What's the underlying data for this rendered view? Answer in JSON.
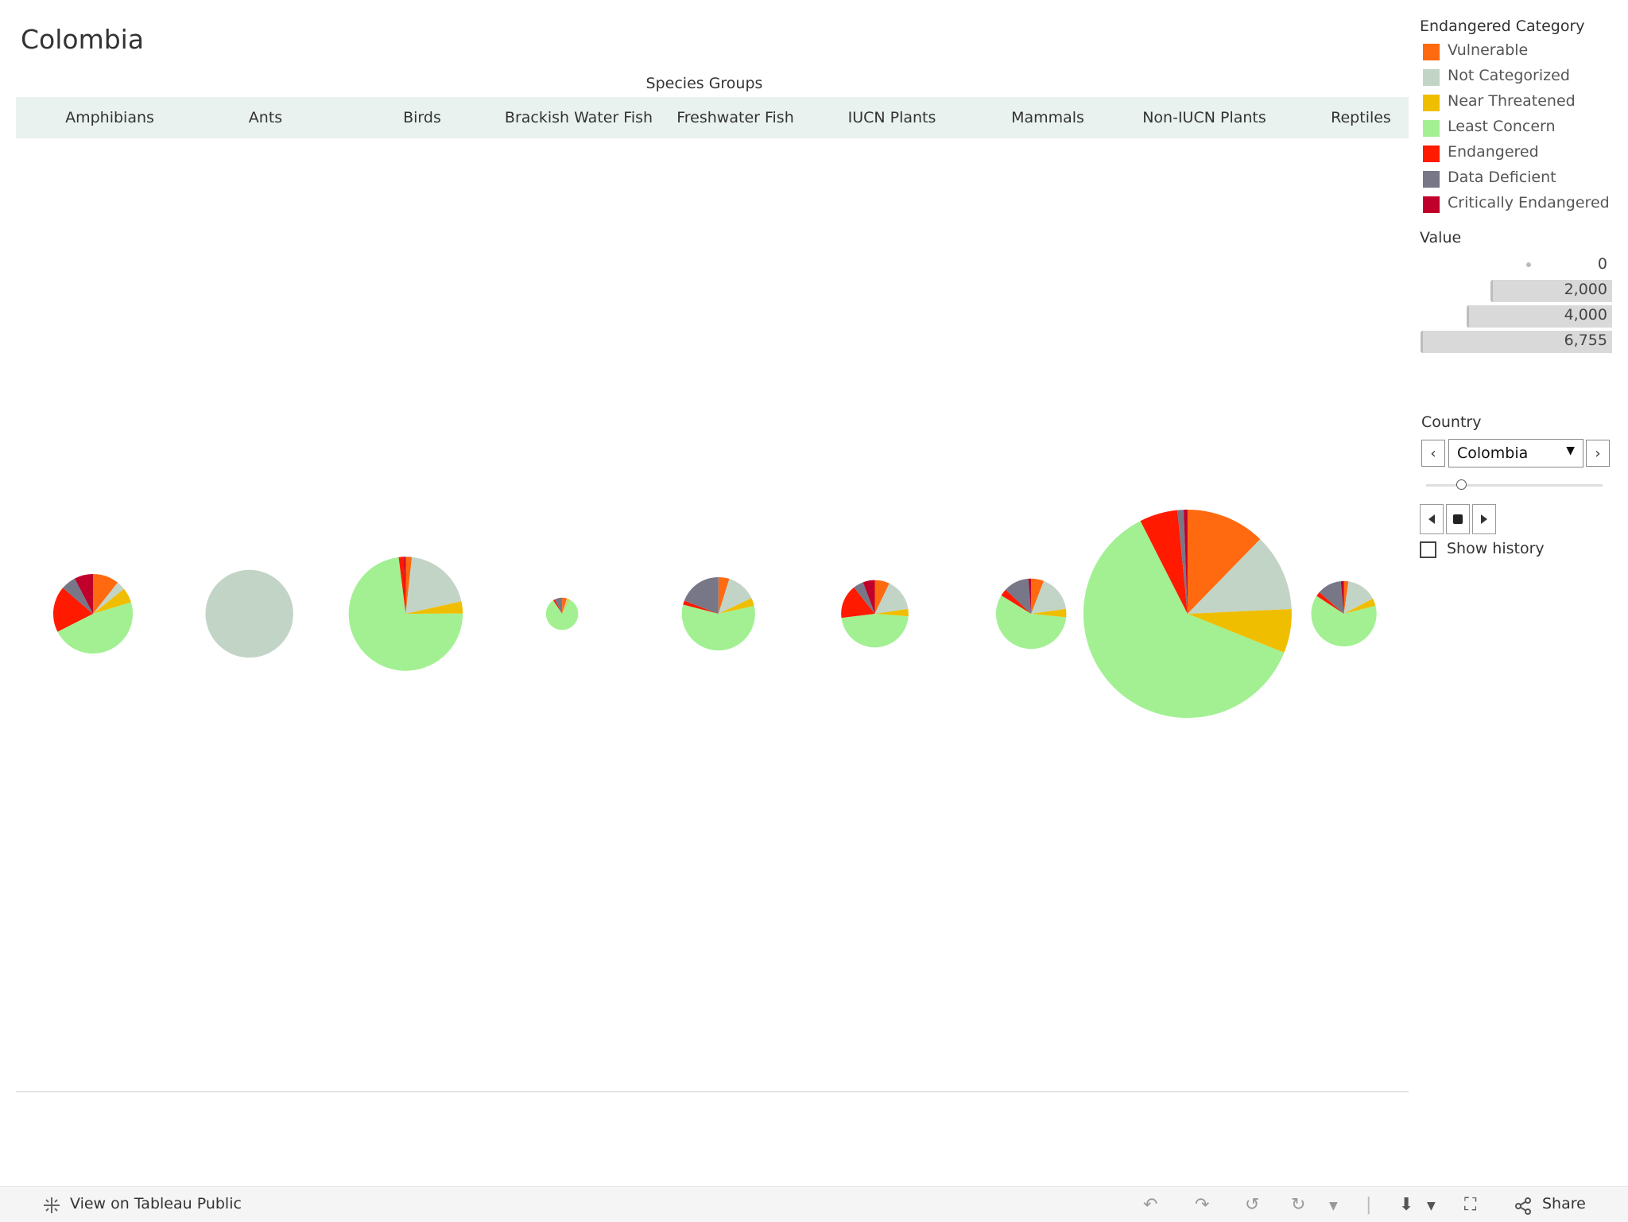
{
  "title": "Colombia",
  "chart_data": {
    "type": "pie",
    "title": "Colombia",
    "column_axis_title": "Species Groups",
    "categories": [
      "Amphibians",
      "Ants",
      "Birds",
      "Brackish Water Fish",
      "Freshwater Fish",
      "IUCN Plants",
      "Mammals",
      "Non-IUCN Plants",
      "Reptiles"
    ],
    "slice_order": [
      "Vulnerable",
      "Not Categorized",
      "Near Threatened",
      "Least Concern",
      "Endangered",
      "Data Deficient",
      "Critically Endangered"
    ],
    "colors": {
      "Vulnerable": "#ff6a10",
      "Not Categorized": "#c2d4c6",
      "Near Threatened": "#f0be00",
      "Least Concern": "#a2f092",
      "Endangered": "#ff1a00",
      "Data Deficient": "#777788",
      "Critically Endangered": "#c0002a"
    },
    "size_measure": "Value",
    "size_legend_values": [
      "0",
      "2,000",
      "4,000",
      "6,755"
    ],
    "size_max": 6755,
    "pies": [
      {
        "group": "Amphibians",
        "values": {
          "Vulnerable": 105,
          "Not Categorized": 35,
          "Near Threatened": 60,
          "Least Concern": 465,
          "Endangered": 185,
          "Data Deficient": 60,
          "Critically Endangered": 75
        }
      },
      {
        "group": "Ants",
        "values": {
          "Vulnerable": 0,
          "Not Categorized": 1200,
          "Near Threatened": 0,
          "Least Concern": 0,
          "Endangered": 0,
          "Data Deficient": 0,
          "Critically Endangered": 0
        }
      },
      {
        "group": "Birds",
        "values": {
          "Vulnerable": 35,
          "Not Categorized": 400,
          "Near Threatened": 70,
          "Least Concern": 1480,
          "Endangered": 30,
          "Data Deficient": 0,
          "Critically Endangered": 10
        }
      },
      {
        "group": "Brackish Water Fish",
        "values": {
          "Vulnerable": 8,
          "Not Categorized": 2,
          "Near Threatened": 2,
          "Least Concern": 135,
          "Endangered": 3,
          "Data Deficient": 12,
          "Critically Endangered": 0
        }
      },
      {
        "group": "Freshwater Fish",
        "values": {
          "Vulnerable": 40,
          "Not Categorized": 110,
          "Near Threatened": 30,
          "Least Concern": 480,
          "Endangered": 15,
          "Data Deficient": 160,
          "Critically Endangered": 0
        }
      },
      {
        "group": "IUCN Plants",
        "values": {
          "Vulnerable": 50,
          "Not Categorized": 110,
          "Near Threatened": 25,
          "Least Concern": 330,
          "Endangered": 115,
          "Data Deficient": 35,
          "Critically Endangered": 40
        }
      },
      {
        "group": "Mammals",
        "values": {
          "Vulnerable": 45,
          "Not Categorized": 130,
          "Near Threatened": 30,
          "Least Concern": 440,
          "Endangered": 25,
          "Data Deficient": 90,
          "Critically Endangered": 10
        }
      },
      {
        "group": "Non-IUCN Plants",
        "values": {
          "Vulnerable": 830,
          "Not Categorized": 810,
          "Near Threatened": 460,
          "Least Concern": 4150,
          "Endangered": 400,
          "Data Deficient": 65,
          "Critically Endangered": 40
        }
      },
      {
        "group": "Reptiles",
        "values": {
          "Vulnerable": 15,
          "Not Categorized": 100,
          "Near Threatened": 25,
          "Least Concern": 420,
          "Endangered": 15,
          "Data Deficient": 80,
          "Critically Endangered": 10
        }
      }
    ]
  },
  "legend": {
    "title": "Endangered Category",
    "items": [
      {
        "label": "Vulnerable",
        "color": "#ff6a10"
      },
      {
        "label": "Not Categorized",
        "color": "#c2d4c6"
      },
      {
        "label": "Near Threatened",
        "color": "#f0be00"
      },
      {
        "label": "Least Concern",
        "color": "#a2f092"
      },
      {
        "label": "Endangered",
        "color": "#ff1a00"
      },
      {
        "label": "Data Deficient",
        "color": "#777788"
      },
      {
        "label": "Critically Endangered",
        "color": "#c0002a"
      }
    ],
    "size_title": "Value",
    "size_labels": [
      "0",
      "2,000",
      "4,000",
      "6,755"
    ]
  },
  "filter": {
    "title": "Country",
    "value": "Colombia",
    "prev_icon": "chevron-left-icon",
    "next_icon": "chevron-right-icon",
    "show_history_label": "Show history",
    "show_history_checked": false,
    "slider_fraction": 0.17
  },
  "footer": {
    "view_link": "View on Tableau Public",
    "share_label": "Share"
  }
}
